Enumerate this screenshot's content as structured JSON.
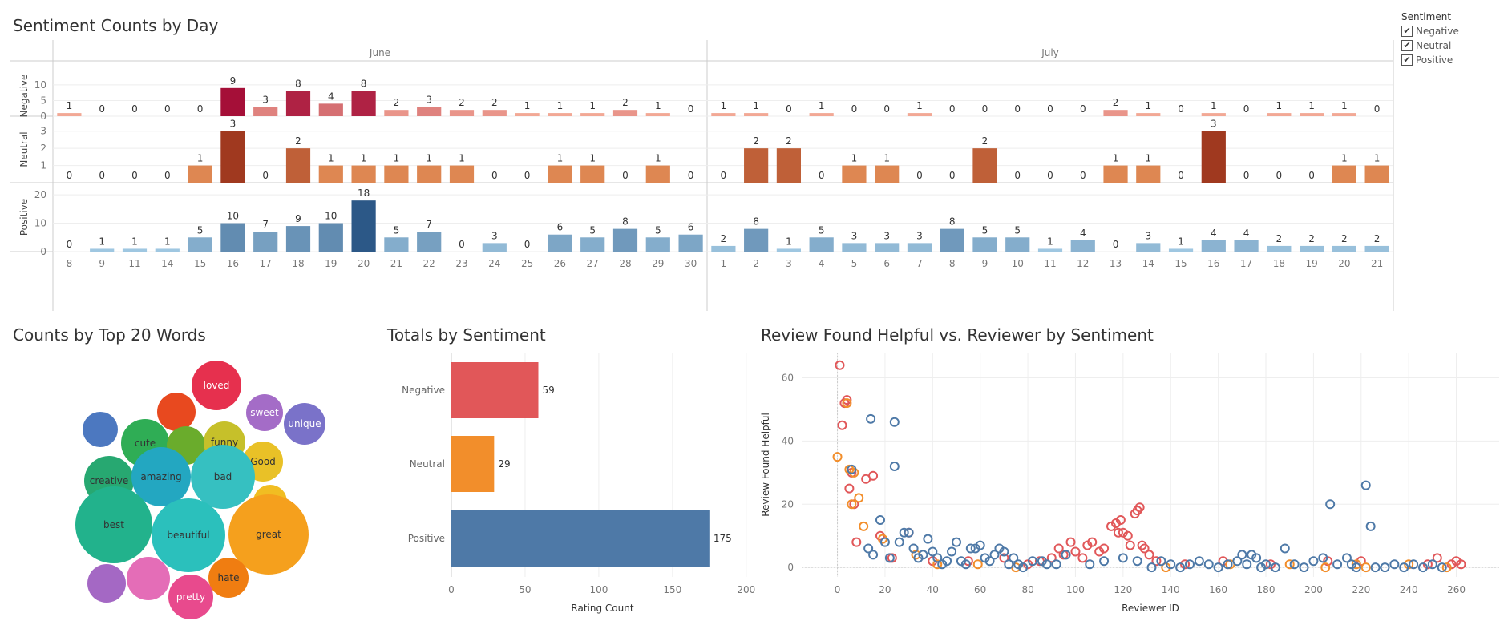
{
  "titles": {
    "top": "Sentiment Counts by Day",
    "words": "Counts by Top 20 Words",
    "totals": "Totals by Sentiment",
    "scatter": "Review Found Helpful vs. Reviewer by Sentiment"
  },
  "legend": {
    "title": "Sentiment",
    "items": [
      {
        "label": "Negative",
        "checked": "✔"
      },
      {
        "label": "Neutral",
        "checked": "✔"
      },
      {
        "label": "Positive",
        "checked": "✔"
      }
    ]
  },
  "colors": {
    "negative": "#e15759",
    "neutral": "#f28e2b",
    "positive": "#4e79a7"
  },
  "chart_data": [
    {
      "type": "bar",
      "title": "Sentiment Counts by Day",
      "months": [
        {
          "name": "June",
          "days": [
            "8",
            "9",
            "11",
            "14",
            "15",
            "16",
            "17",
            "18",
            "19",
            "20",
            "21",
            "22",
            "23",
            "24",
            "25",
            "26",
            "27",
            "28",
            "29",
            "30"
          ]
        },
        {
          "name": "July",
          "days": [
            "1",
            "2",
            "3",
            "4",
            "5",
            "6",
            "7",
            "8",
            "9",
            "10",
            "11",
            "12",
            "13",
            "14",
            "15",
            "16",
            "17",
            "18",
            "19",
            "20",
            "21"
          ]
        }
      ],
      "series": [
        {
          "name": "Negative",
          "ticks": [
            0,
            5,
            10
          ],
          "ylim": [
            0,
            11
          ],
          "values": [
            1,
            0,
            0,
            0,
            0,
            9,
            3,
            8,
            4,
            8,
            2,
            3,
            2,
            2,
            1,
            1,
            1,
            2,
            1,
            0,
            1,
            1,
            0,
            1,
            0,
            0,
            1,
            0,
            0,
            0,
            0,
            0,
            2,
            1,
            0,
            1,
            0,
            1,
            1,
            1,
            0
          ]
        },
        {
          "name": "Neutral",
          "ticks": [
            1,
            2,
            3
          ],
          "ylim": [
            0,
            3.5
          ],
          "values": [
            0,
            0,
            0,
            0,
            1,
            3,
            0,
            2,
            1,
            1,
            1,
            1,
            1,
            0,
            0,
            1,
            1,
            0,
            1,
            0,
            0,
            2,
            2,
            0,
            1,
            1,
            0,
            0,
            2,
            0,
            0,
            0,
            1,
            1,
            0,
            3,
            0,
            0,
            0,
            1,
            1
          ]
        },
        {
          "name": "Positive",
          "ticks": [
            0,
            10,
            20
          ],
          "ylim": [
            0,
            22
          ],
          "values": [
            0,
            1,
            1,
            1,
            5,
            10,
            7,
            9,
            10,
            18,
            5,
            7,
            0,
            3,
            0,
            6,
            5,
            8,
            5,
            6,
            2,
            8,
            1,
            5,
            3,
            3,
            3,
            8,
            5,
            5,
            1,
            4,
            0,
            3,
            1,
            4,
            4,
            2,
            2,
            2,
            2
          ]
        }
      ]
    },
    {
      "type": "bubble",
      "title": "Counts by Top 20 Words",
      "words": [
        "loved",
        "sweet",
        "unique",
        "cute",
        "funny",
        "Good",
        "creative",
        "amazing",
        "bad",
        "best",
        "beautiful",
        "great",
        "hate",
        "pretty"
      ]
    },
    {
      "type": "bar",
      "title": "Totals by Sentiment",
      "categories": [
        "Negative",
        "Neutral",
        "Positive"
      ],
      "values": [
        59,
        29,
        175
      ],
      "xlabel": "Rating Count",
      "xticks": [
        0,
        50,
        100,
        150,
        200
      ],
      "xlim": [
        0,
        205
      ]
    },
    {
      "type": "scatter",
      "title": "Review Found Helpful vs. Reviewer by Sentiment",
      "xlabel": "Reviewer ID",
      "ylabel": "Review Found Helpful",
      "xticks": [
        0,
        20,
        40,
        60,
        80,
        100,
        120,
        140,
        160,
        180,
        200,
        220,
        240,
        260
      ],
      "yticks": [
        0,
        20,
        40,
        60
      ],
      "xlim": [
        -15,
        278
      ],
      "ylim": [
        -3,
        68
      ],
      "series": [
        {
          "name": "Negative",
          "points": [
            [
              1,
              64
            ],
            [
              2,
              45
            ],
            [
              3,
              52
            ],
            [
              4,
              53
            ],
            [
              5,
              25
            ],
            [
              6,
              30
            ],
            [
              7,
              20
            ],
            [
              8,
              8
            ],
            [
              12,
              28
            ],
            [
              15,
              29
            ],
            [
              18,
              10
            ],
            [
              23,
              3
            ],
            [
              30,
              11
            ],
            [
              40,
              2
            ],
            [
              55,
              2
            ],
            [
              70,
              3
            ],
            [
              80,
              1
            ],
            [
              85,
              2
            ],
            [
              90,
              3
            ],
            [
              93,
              6
            ],
            [
              95,
              4
            ],
            [
              98,
              8
            ],
            [
              100,
              5
            ],
            [
              103,
              3
            ],
            [
              105,
              7
            ],
            [
              107,
              8
            ],
            [
              110,
              5
            ],
            [
              112,
              6
            ],
            [
              115,
              13
            ],
            [
              117,
              14
            ],
            [
              118,
              11
            ],
            [
              119,
              15
            ],
            [
              120,
              11
            ],
            [
              122,
              10
            ],
            [
              123,
              7
            ],
            [
              125,
              17
            ],
            [
              126,
              18
            ],
            [
              127,
              19
            ],
            [
              128,
              7
            ],
            [
              129,
              6
            ],
            [
              131,
              4
            ],
            [
              134,
              2
            ],
            [
              146,
              1
            ],
            [
              162,
              2
            ],
            [
              182,
              1
            ],
            [
              206,
              2
            ],
            [
              220,
              2
            ],
            [
              248,
              1
            ],
            [
              252,
              3
            ],
            [
              258,
              1
            ],
            [
              260,
              2
            ],
            [
              262,
              1
            ]
          ]
        },
        {
          "name": "Neutral",
          "points": [
            [
              0,
              35
            ],
            [
              4,
              52
            ],
            [
              5,
              31
            ],
            [
              6,
              20
            ],
            [
              7,
              30
            ],
            [
              9,
              22
            ],
            [
              11,
              13
            ],
            [
              19,
              9
            ],
            [
              33,
              4
            ],
            [
              42,
              1
            ],
            [
              59,
              1
            ],
            [
              75,
              0
            ],
            [
              138,
              0
            ],
            [
              165,
              1
            ],
            [
              190,
              1
            ],
            [
              205,
              0
            ],
            [
              218,
              1
            ],
            [
              222,
              0
            ],
            [
              240,
              1
            ],
            [
              256,
              0
            ]
          ]
        },
        {
          "name": "Positive",
          "points": [
            [
              14,
              47
            ],
            [
              24,
              46
            ],
            [
              24,
              32
            ],
            [
              6,
              31
            ],
            [
              13,
              6
            ],
            [
              15,
              4
            ],
            [
              18,
              15
            ],
            [
              20,
              8
            ],
            [
              22,
              3
            ],
            [
              26,
              8
            ],
            [
              28,
              11
            ],
            [
              30,
              11
            ],
            [
              32,
              6
            ],
            [
              34,
              3
            ],
            [
              36,
              4
            ],
            [
              38,
              9
            ],
            [
              40,
              5
            ],
            [
              42,
              3
            ],
            [
              44,
              1
            ],
            [
              46,
              2
            ],
            [
              48,
              5
            ],
            [
              50,
              8
            ],
            [
              52,
              2
            ],
            [
              54,
              1
            ],
            [
              56,
              6
            ],
            [
              58,
              6
            ],
            [
              60,
              7
            ],
            [
              62,
              3
            ],
            [
              64,
              2
            ],
            [
              66,
              4
            ],
            [
              68,
              6
            ],
            [
              70,
              5
            ],
            [
              72,
              1
            ],
            [
              74,
              3
            ],
            [
              76,
              1
            ],
            [
              78,
              0
            ],
            [
              82,
              2
            ],
            [
              86,
              2
            ],
            [
              88,
              1
            ],
            [
              92,
              1
            ],
            [
              96,
              4
            ],
            [
              106,
              1
            ],
            [
              112,
              2
            ],
            [
              120,
              3
            ],
            [
              126,
              2
            ],
            [
              132,
              0
            ],
            [
              136,
              2
            ],
            [
              140,
              1
            ],
            [
              144,
              0
            ],
            [
              148,
              1
            ],
            [
              152,
              2
            ],
            [
              156,
              1
            ],
            [
              160,
              0
            ],
            [
              164,
              1
            ],
            [
              168,
              2
            ],
            [
              170,
              4
            ],
            [
              172,
              1
            ],
            [
              174,
              4
            ],
            [
              176,
              3
            ],
            [
              178,
              0
            ],
            [
              180,
              1
            ],
            [
              184,
              0
            ],
            [
              188,
              6
            ],
            [
              192,
              1
            ],
            [
              196,
              0
            ],
            [
              200,
              2
            ],
            [
              204,
              3
            ],
            [
              207,
              20
            ],
            [
              210,
              1
            ],
            [
              214,
              3
            ],
            [
              216,
              1
            ],
            [
              218,
              0
            ],
            [
              222,
              26
            ],
            [
              224,
              13
            ],
            [
              226,
              0
            ],
            [
              230,
              0
            ],
            [
              234,
              1
            ],
            [
              238,
              0
            ],
            [
              242,
              1
            ],
            [
              246,
              0
            ],
            [
              250,
              1
            ],
            [
              254,
              0
            ]
          ]
        }
      ]
    }
  ]
}
